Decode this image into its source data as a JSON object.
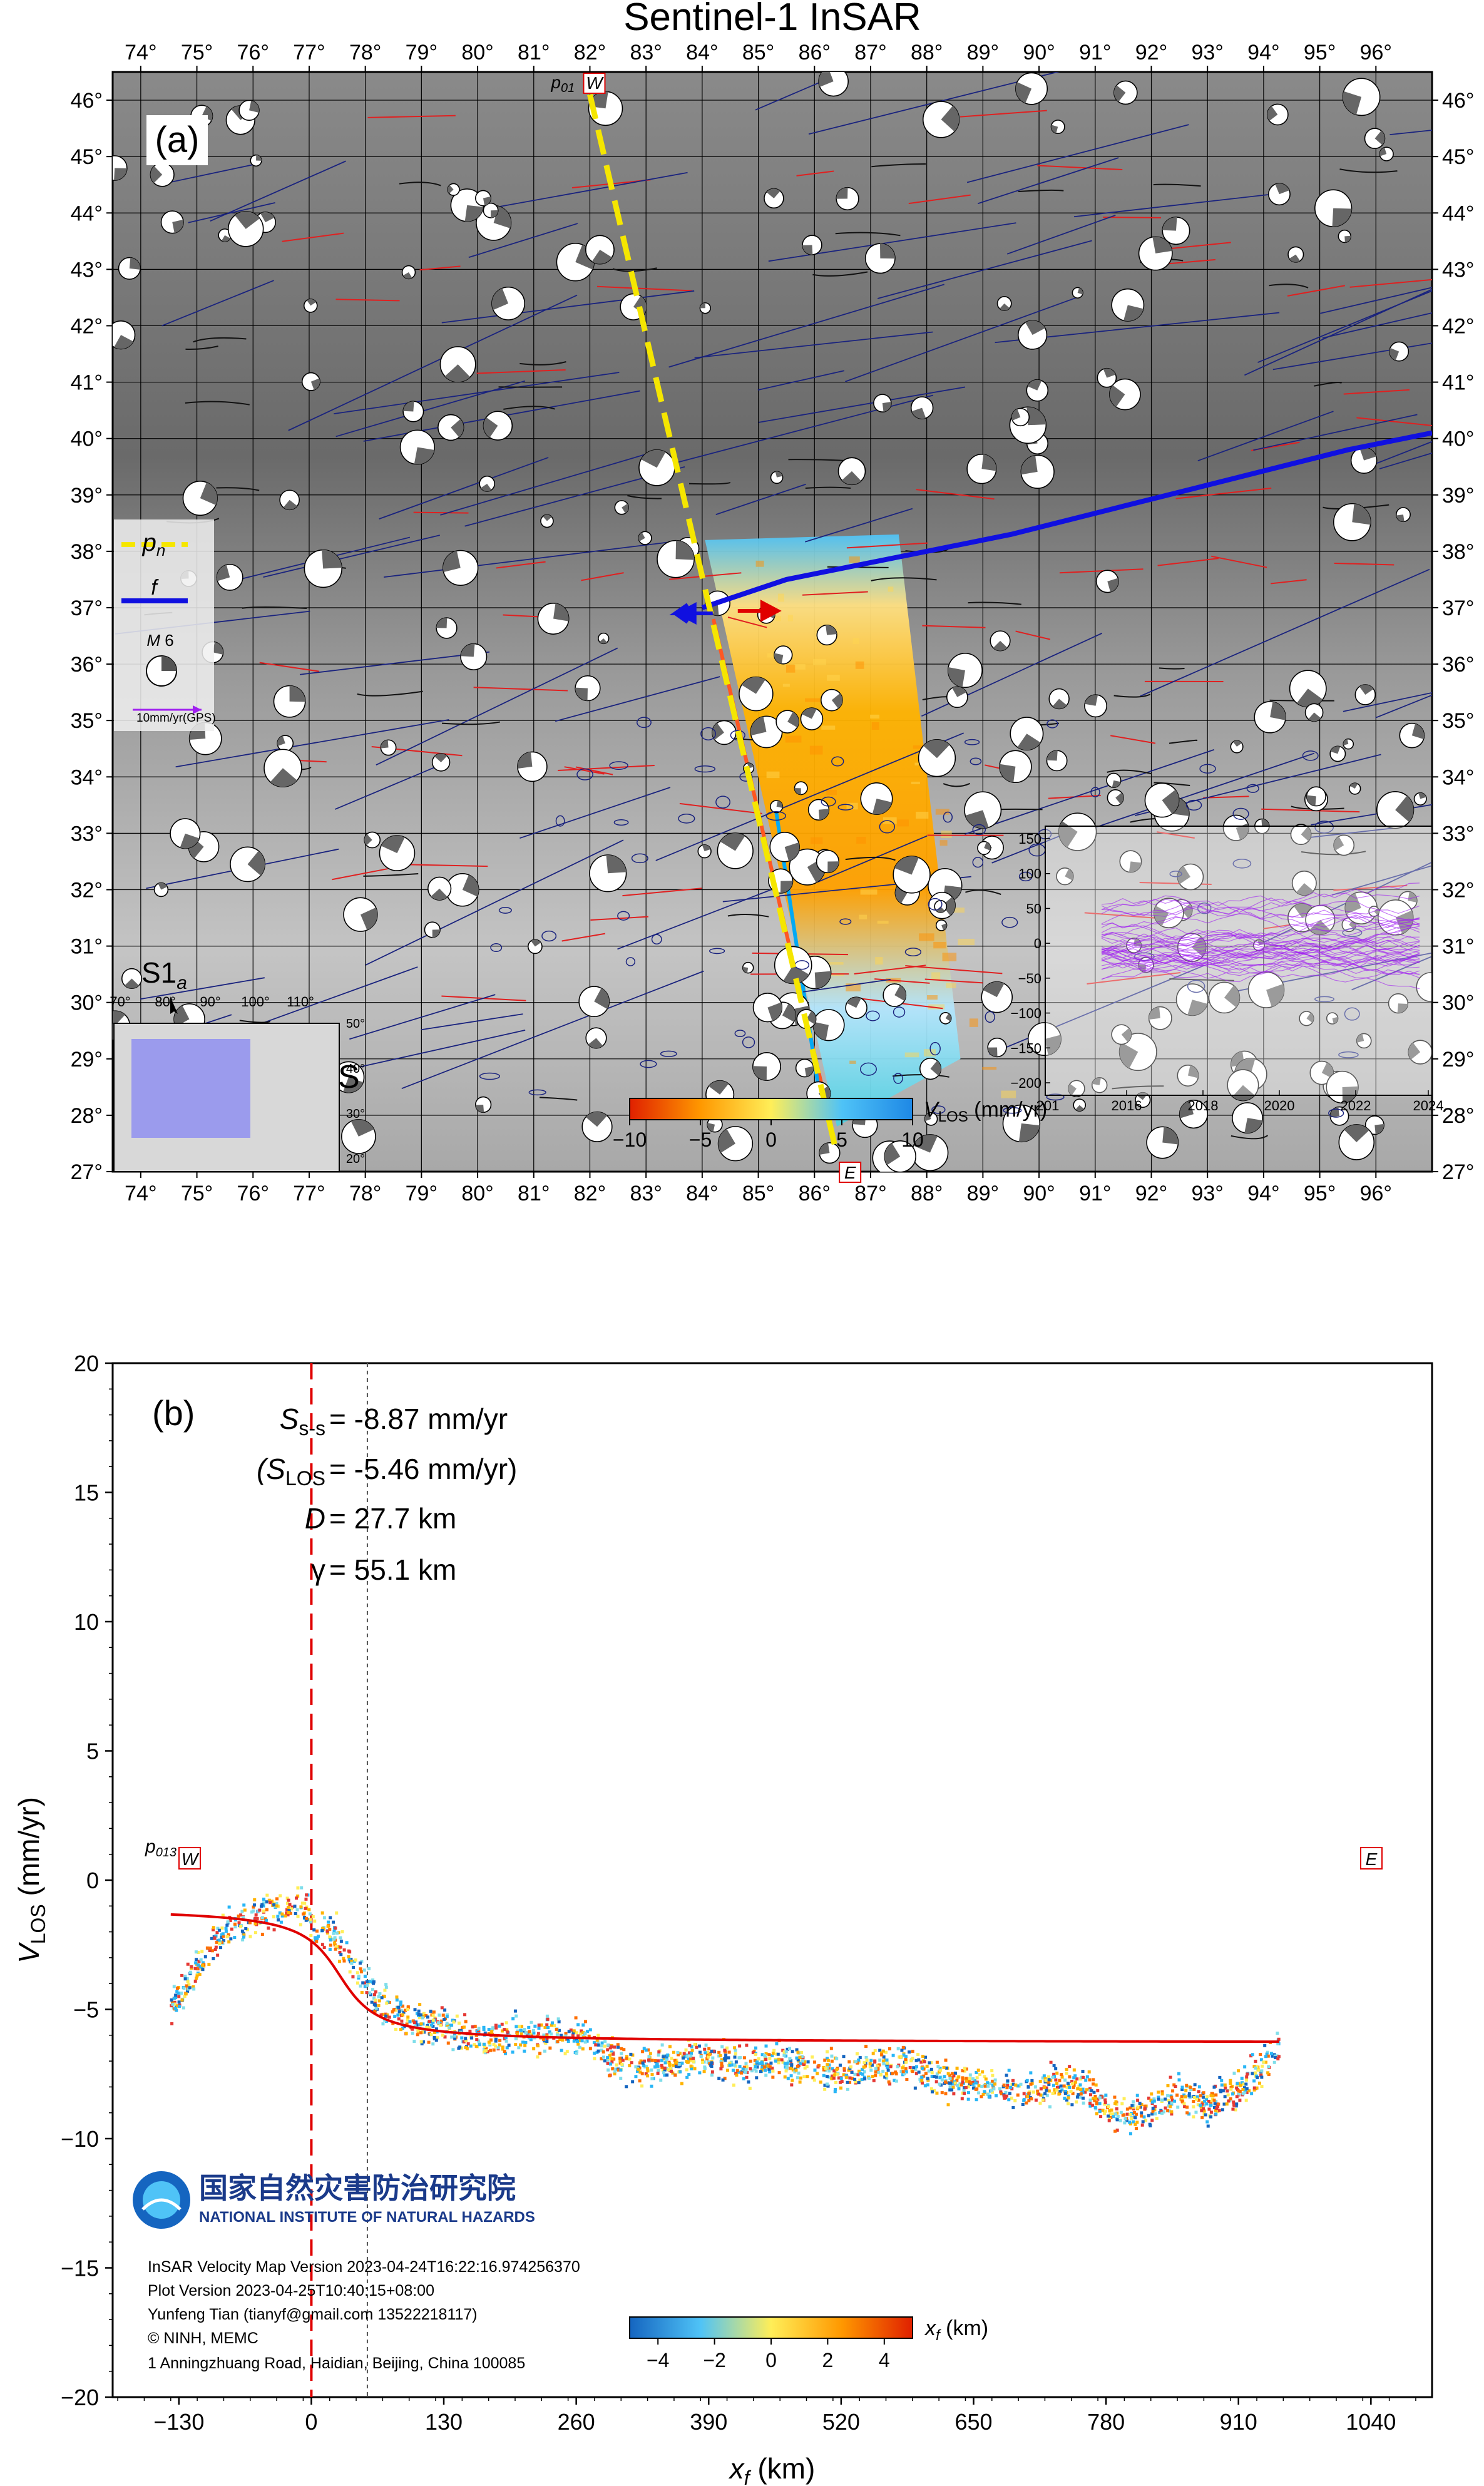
{
  "figure_title": "Sentinel-1 InSAR",
  "colors": {
    "fault_blue": "#1010e0",
    "profile_yellow": "#f5e600",
    "fit_red": "#e00000",
    "gps_purple": "#a020f0",
    "ridge_red": "#e02020",
    "strike_slip_blue": "#1a237e"
  },
  "chart_data": [
    {
      "type": "map",
      "panel_label": "(a)",
      "title": "Sentinel-1 InSAR",
      "lon_ticks": [
        "74°",
        "75°",
        "76°",
        "77°",
        "78°",
        "79°",
        "80°",
        "81°",
        "82°",
        "83°",
        "84°",
        "85°",
        "86°",
        "87°",
        "88°",
        "89°",
        "90°",
        "91°",
        "92°",
        "93°",
        "94°",
        "95°",
        "96°"
      ],
      "lat_ticks": [
        "46°",
        "45°",
        "44°",
        "43°",
        "42°",
        "41°",
        "40°",
        "39°",
        "38°",
        "37°",
        "36°",
        "35°",
        "34°",
        "33°",
        "32°",
        "31°",
        "30°",
        "29°",
        "28°",
        "27°"
      ],
      "xlim": [
        73.5,
        97
      ],
      "ylim": [
        27,
        46.5
      ],
      "profile": {
        "name_prefix": "p",
        "name_sub_top": "01",
        "name_sub_full": "01",
        "start_label": "W",
        "end_label": "E",
        "start": [
          82.0,
          46.1
        ],
        "end": [
          86.4,
          27.3
        ]
      },
      "fault_trace": [
        [
          84.0,
          37.0
        ],
        [
          85.5,
          37.5
        ],
        [
          87.5,
          37.9
        ],
        [
          89.5,
          38.3
        ],
        [
          91.5,
          38.8
        ],
        [
          93.5,
          39.3
        ],
        [
          95.5,
          39.8
        ],
        [
          97.0,
          40.1
        ]
      ],
      "legend": {
        "profile_label": "p",
        "profile_sub": "n",
        "fault_label": "f",
        "magnitude_label": "M",
        "magnitude_value": "6",
        "gps_label": "10mm/yr(GPS)"
      },
      "colorbar": {
        "label": "V",
        "label_sub": "LOS",
        "unit": "(mm/yr)",
        "ticks": [
          "−10",
          "−5",
          "0",
          "5",
          "10"
        ],
        "range": [
          -10,
          10
        ]
      },
      "inset_timeseries": {
        "y_ticks": [
          "150",
          "100",
          "50",
          "0",
          "−50",
          "−100",
          "−150",
          "−200"
        ],
        "x_ticks": [
          "2016",
          "2018",
          "2020",
          "2022",
          "2024"
        ],
        "x_first_partial": "201"
      },
      "inset_locator": {
        "satellite_label": "S1",
        "satellite_sub": "a",
        "lon_ticks": [
          "70°",
          "80°",
          "90°",
          "100°",
          "110°"
        ],
        "lat_ticks": [
          "50°",
          "40°",
          "30°",
          "20°"
        ],
        "side_letter": "S"
      }
    },
    {
      "type": "scatter",
      "panel_label": "(b)",
      "xlabel": "x",
      "xlabel_sub": "f",
      "xlabel_unit": "(km)",
      "ylabel": "V",
      "ylabel_sub": "LOS",
      "ylabel_unit": "(mm/yr)",
      "xlim": [
        -195,
        1100
      ],
      "ylim": [
        -20,
        20
      ],
      "x_ticks": [
        -130,
        0,
        130,
        260,
        390,
        520,
        650,
        780,
        910,
        1040
      ],
      "x_tick_labels": [
        "−130",
        "0",
        "130",
        "260",
        "390",
        "520",
        "650",
        "780",
        "910",
        "1040"
      ],
      "y_ticks": [
        -20,
        -15,
        -10,
        -5,
        0,
        5,
        10,
        15,
        20
      ],
      "y_tick_labels": [
        "−20",
        "−15",
        "−10",
        "−5",
        "0",
        "5",
        "10",
        "15",
        "20"
      ],
      "fault_line_x": 0,
      "locking_depth_line_x": 55,
      "fit": {
        "model": "arctan",
        "far_left": -1.05,
        "far_right": -6.3,
        "center_x": 27.7,
        "width_km": 27.7
      },
      "data_profile": [
        [
          -138,
          -4.9
        ],
        [
          -120,
          -3.9
        ],
        [
          -100,
          -2.7
        ],
        [
          -80,
          -1.9
        ],
        [
          -60,
          -1.5
        ],
        [
          -40,
          -1.2
        ],
        [
          -20,
          -0.9
        ],
        [
          -5,
          -1.0
        ],
        [
          0,
          -1.8
        ],
        [
          20,
          -2.0
        ],
        [
          40,
          -3.2
        ],
        [
          60,
          -4.5
        ],
        [
          80,
          -5.0
        ],
        [
          100,
          -5.5
        ],
        [
          130,
          -5.7
        ],
        [
          160,
          -6.2
        ],
        [
          200,
          -6.0
        ],
        [
          240,
          -6.0
        ],
        [
          270,
          -6.1
        ],
        [
          300,
          -7.0
        ],
        [
          340,
          -7.2
        ],
        [
          380,
          -6.8
        ],
        [
          420,
          -7.2
        ],
        [
          460,
          -7.0
        ],
        [
          500,
          -7.4
        ],
        [
          540,
          -7.3
        ],
        [
          580,
          -7.0
        ],
        [
          610,
          -7.6
        ],
        [
          640,
          -7.8
        ],
        [
          670,
          -8.0
        ],
        [
          700,
          -8.2
        ],
        [
          730,
          -7.9
        ],
        [
          760,
          -8.1
        ],
        [
          790,
          -9.1
        ],
        [
          820,
          -8.8
        ],
        [
          850,
          -8.4
        ],
        [
          880,
          -8.6
        ],
        [
          910,
          -8.2
        ],
        [
          930,
          -7.3
        ],
        [
          950,
          -6.5
        ]
      ],
      "noise_amp": 0.7,
      "annotations": {
        "Sss_label": "S",
        "Sss_sub": "s-s",
        "Sss_value": "= -8.87 mm/yr",
        "Slos_open": "(S",
        "Slos_sub": "LOS",
        "Slos_value": "= -5.46 mm/yr)",
        "D_label": "D",
        "D_value": "= 27.7 km",
        "gamma_label": "γ",
        "gamma_value": "= 55.1 km"
      },
      "profile_tag": {
        "prefix": "p",
        "sub": "013",
        "start_label": "W",
        "end_label": "E"
      },
      "colorbar": {
        "label": "x",
        "label_sub": "f",
        "unit": "(km)",
        "ticks": [
          "−4",
          "−2",
          "0",
          "2",
          "4"
        ],
        "range": [
          -5,
          5
        ]
      },
      "institute": {
        "name_cn": "国家自然灾害防治研究院",
        "name_en": "NATIONAL INSTITUTE OF NATURAL HAZARDS"
      },
      "credits": [
        "InSAR Velocity Map Version 2023-04-24T16:22:16.974256370",
        "Plot Version 2023-04-25T10:40:15+08:00",
        "Yunfeng Tian (tianyf@gmail.com  13522218117)",
        "© NINH, MEMC",
        "1 Anningzhuang Road, Haidian, Beijing, China  100085"
      ]
    }
  ]
}
